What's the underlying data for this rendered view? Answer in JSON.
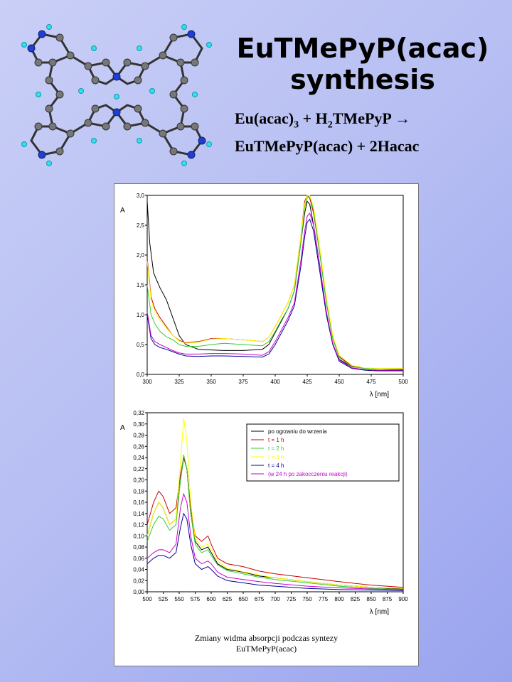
{
  "title": {
    "line1": "EuTMePyP(acac)",
    "line2": "synthesis"
  },
  "equation": {
    "line1_a": "Eu(acac)",
    "line1_sub3": "3",
    "line1_b": " + H",
    "line1_sub2": "2",
    "line1_c": "TMePyP →",
    "line2": "EuTMePyP(acac) + 2Hacac"
  },
  "caption": {
    "line1": "Zmiany widma absorpcji podczas syntezy",
    "line2": "EuTMePyP(acac)"
  },
  "colors": {
    "black": "#000000",
    "red": "#cc0000",
    "green": "#33cc33",
    "yellow": "#ffff00",
    "blue": "#000099",
    "magenta": "#cc00cc"
  },
  "chart_data": [
    {
      "type": "line",
      "ylabel": "A",
      "xlabel": "λ [nm]",
      "xlim": [
        300,
        500
      ],
      "ylim": [
        0,
        3.0
      ],
      "xticks": [
        300,
        325,
        350,
        375,
        400,
        425,
        450,
        475,
        500
      ],
      "xtick_labels": [
        "300",
        "325",
        "350",
        "375",
        "400",
        "425",
        "450",
        "475",
        "500"
      ],
      "yticks": [
        0,
        0.5,
        1.0,
        1.5,
        2.0,
        2.5,
        3.0
      ],
      "ytick_labels": [
        "0,0",
        "0,5",
        "1,0",
        "1,5",
        "2,0",
        "2,5",
        "3,0"
      ],
      "series": [
        {
          "color": "#000000",
          "x": [
            300,
            302,
            305,
            310,
            315,
            320,
            325,
            330,
            340,
            350,
            360,
            375,
            390,
            395,
            400,
            405,
            410,
            415,
            420,
            423,
            425,
            427,
            430,
            435,
            440,
            445,
            450,
            460,
            470,
            480,
            500
          ],
          "y": [
            2.9,
            2.2,
            1.7,
            1.45,
            1.25,
            0.95,
            0.65,
            0.5,
            0.42,
            0.41,
            0.4,
            0.4,
            0.42,
            0.5,
            0.7,
            0.9,
            1.1,
            1.4,
            2.2,
            2.7,
            2.9,
            2.85,
            2.5,
            1.8,
            1.0,
            0.5,
            0.25,
            0.13,
            0.1,
            0.09,
            0.09
          ]
        },
        {
          "color": "#cc0000",
          "x": [
            300,
            303,
            306,
            310,
            315,
            320,
            325,
            330,
            340,
            350,
            360,
            375,
            390,
            395,
            400,
            405,
            410,
            415,
            420,
            423,
            425,
            427,
            430,
            435,
            440,
            445,
            450,
            460,
            470,
            480,
            500
          ],
          "y": [
            1.95,
            1.3,
            1.1,
            0.95,
            0.8,
            0.65,
            0.57,
            0.53,
            0.55,
            0.6,
            0.6,
            0.58,
            0.55,
            0.62,
            0.8,
            1.0,
            1.2,
            1.5,
            2.3,
            2.9,
            3.0,
            2.95,
            2.7,
            2.0,
            1.2,
            0.6,
            0.3,
            0.14,
            0.1,
            0.09,
            0.08
          ]
        },
        {
          "color": "#33cc33",
          "x": [
            300,
            303,
            306,
            310,
            315,
            320,
            325,
            330,
            340,
            350,
            360,
            375,
            390,
            395,
            400,
            405,
            410,
            415,
            420,
            423,
            425,
            427,
            430,
            435,
            440,
            445,
            450,
            460,
            470,
            480,
            500
          ],
          "y": [
            1.5,
            1.0,
            0.85,
            0.72,
            0.63,
            0.58,
            0.5,
            0.47,
            0.47,
            0.5,
            0.52,
            0.5,
            0.48,
            0.55,
            0.72,
            0.92,
            1.1,
            1.4,
            2.2,
            2.8,
            2.95,
            3.0,
            2.75,
            2.0,
            1.2,
            0.6,
            0.28,
            0.13,
            0.1,
            0.09,
            0.08
          ]
        },
        {
          "color": "#ffff00",
          "x": [
            300,
            303,
            306,
            310,
            315,
            320,
            325,
            330,
            340,
            350,
            360,
            375,
            390,
            395,
            400,
            405,
            410,
            415,
            420,
            423,
            425,
            427,
            430,
            435,
            440,
            445,
            450,
            460,
            470,
            480,
            500
          ],
          "y": [
            1.9,
            1.25,
            1.05,
            0.9,
            0.78,
            0.65,
            0.56,
            0.52,
            0.54,
            0.59,
            0.6,
            0.58,
            0.55,
            0.62,
            0.8,
            1.0,
            1.2,
            1.5,
            2.3,
            2.85,
            3.0,
            3.0,
            2.8,
            2.1,
            1.3,
            0.65,
            0.32,
            0.15,
            0.11,
            0.1,
            0.1
          ]
        },
        {
          "color": "#000099",
          "x": [
            300,
            303,
            306,
            310,
            315,
            320,
            325,
            330,
            340,
            350,
            360,
            375,
            390,
            395,
            400,
            405,
            410,
            415,
            420,
            423,
            425,
            427,
            430,
            435,
            440,
            445,
            450,
            460,
            470,
            480,
            500
          ],
          "y": [
            1.0,
            0.6,
            0.5,
            0.45,
            0.42,
            0.38,
            0.34,
            0.31,
            0.3,
            0.31,
            0.31,
            0.3,
            0.29,
            0.34,
            0.5,
            0.7,
            0.9,
            1.15,
            1.8,
            2.3,
            2.55,
            2.6,
            2.4,
            1.7,
            1.0,
            0.5,
            0.22,
            0.1,
            0.07,
            0.06,
            0.06
          ]
        },
        {
          "color": "#cc00cc",
          "x": [
            300,
            303,
            306,
            310,
            315,
            320,
            325,
            330,
            340,
            350,
            360,
            375,
            390,
            395,
            400,
            405,
            410,
            415,
            420,
            423,
            425,
            427,
            430,
            435,
            440,
            445,
            450,
            460,
            470,
            480,
            500
          ],
          "y": [
            1.05,
            0.65,
            0.55,
            0.5,
            0.45,
            0.4,
            0.36,
            0.34,
            0.34,
            0.35,
            0.35,
            0.34,
            0.32,
            0.38,
            0.55,
            0.75,
            0.95,
            1.2,
            1.9,
            2.4,
            2.65,
            2.7,
            2.5,
            1.8,
            1.05,
            0.52,
            0.24,
            0.11,
            0.08,
            0.07,
            0.07
          ]
        }
      ]
    },
    {
      "type": "line",
      "ylabel": "A",
      "xlabel": "λ [nm]",
      "xlim": [
        500,
        900
      ],
      "ylim": [
        0,
        0.32
      ],
      "xticks": [
        500,
        525,
        550,
        575,
        600,
        625,
        650,
        675,
        700,
        725,
        750,
        775,
        800,
        825,
        850,
        875,
        900
      ],
      "xtick_labels": [
        "500",
        "525",
        "550",
        "575",
        "600",
        "625",
        "650",
        "675",
        "700",
        "725",
        "750",
        "775",
        "800",
        "825",
        "850",
        "875",
        "900"
      ],
      "yticks": [
        0,
        0.02,
        0.04,
        0.06,
        0.08,
        0.1,
        0.12,
        0.14,
        0.16,
        0.18,
        0.2,
        0.22,
        0.24,
        0.26,
        0.28,
        0.3,
        0.32
      ],
      "ytick_labels": [
        "0,00",
        "0,02",
        "0,04",
        "0,06",
        "0,08",
        "0,10",
        "0,12",
        "0,14",
        "0,16",
        "0,18",
        "0,20",
        "0,22",
        "0,24",
        "0,26",
        "0,28",
        "0,30",
        "0,32"
      ],
      "legend": {
        "position": "top-right"
      },
      "series": [
        {
          "name": "po ogrzaniu do wrzenia",
          "color": "#000000",
          "x": [
            500,
            510,
            518,
            525,
            535,
            545,
            552,
            557,
            562,
            568,
            575,
            585,
            595,
            600,
            610,
            625,
            650,
            675,
            700,
            750,
            800,
            850,
            900
          ],
          "y": [
            0.1,
            0.14,
            0.16,
            0.15,
            0.12,
            0.13,
            0.2,
            0.24,
            0.22,
            0.14,
            0.09,
            0.075,
            0.08,
            0.07,
            0.05,
            0.04,
            0.035,
            0.028,
            0.025,
            0.018,
            0.012,
            0.008,
            0.005
          ]
        },
        {
          "name": "t = 1 h",
          "color": "#cc0000",
          "x": [
            500,
            510,
            518,
            525,
            535,
            545,
            552,
            557,
            562,
            568,
            575,
            585,
            595,
            600,
            610,
            625,
            650,
            675,
            700,
            750,
            800,
            850,
            900
          ],
          "y": [
            0.12,
            0.16,
            0.18,
            0.17,
            0.14,
            0.15,
            0.21,
            0.24,
            0.22,
            0.15,
            0.1,
            0.09,
            0.1,
            0.085,
            0.06,
            0.05,
            0.045,
            0.037,
            0.032,
            0.025,
            0.018,
            0.012,
            0.008
          ]
        },
        {
          "name": "t = 2 h",
          "color": "#33cc33",
          "x": [
            500,
            510,
            518,
            525,
            535,
            545,
            552,
            557,
            562,
            568,
            575,
            585,
            595,
            600,
            610,
            625,
            650,
            675,
            700,
            750,
            800,
            850,
            900
          ],
          "y": [
            0.09,
            0.12,
            0.135,
            0.13,
            0.11,
            0.12,
            0.2,
            0.245,
            0.22,
            0.14,
            0.085,
            0.07,
            0.075,
            0.065,
            0.048,
            0.038,
            0.032,
            0.026,
            0.022,
            0.016,
            0.01,
            0.006,
            0.004
          ]
        },
        {
          "name": "t = 3 h",
          "color": "#ffff00",
          "x": [
            500,
            510,
            518,
            525,
            535,
            545,
            552,
            557,
            562,
            568,
            575,
            585,
            595,
            600,
            610,
            625,
            650,
            675,
            700,
            750,
            800,
            850,
            900
          ],
          "y": [
            0.1,
            0.14,
            0.16,
            0.15,
            0.12,
            0.13,
            0.23,
            0.31,
            0.27,
            0.16,
            0.095,
            0.08,
            0.085,
            0.075,
            0.055,
            0.042,
            0.036,
            0.03,
            0.025,
            0.018,
            0.012,
            0.008,
            0.006
          ]
        },
        {
          "name": "t = 4 h",
          "color": "#000099",
          "x": [
            500,
            510,
            518,
            525,
            535,
            545,
            552,
            557,
            562,
            568,
            575,
            585,
            595,
            600,
            610,
            625,
            650,
            675,
            700,
            750,
            800,
            850,
            900
          ],
          "y": [
            0.05,
            0.06,
            0.065,
            0.065,
            0.06,
            0.07,
            0.115,
            0.14,
            0.13,
            0.085,
            0.05,
            0.04,
            0.045,
            0.04,
            0.028,
            0.02,
            0.016,
            0.012,
            0.01,
            0.006,
            0.004,
            0.003,
            0.002
          ]
        },
        {
          "name": "(w 24 h po zakocczeniu reakcji)",
          "color": "#cc00cc",
          "x": [
            500,
            510,
            518,
            525,
            535,
            545,
            552,
            557,
            562,
            568,
            575,
            585,
            595,
            600,
            610,
            625,
            650,
            675,
            700,
            750,
            800,
            850,
            900
          ],
          "y": [
            0.06,
            0.07,
            0.075,
            0.075,
            0.07,
            0.085,
            0.15,
            0.175,
            0.16,
            0.1,
            0.06,
            0.05,
            0.055,
            0.05,
            0.035,
            0.026,
            0.022,
            0.018,
            0.015,
            0.01,
            0.007,
            0.005,
            0.004
          ]
        }
      ]
    }
  ]
}
